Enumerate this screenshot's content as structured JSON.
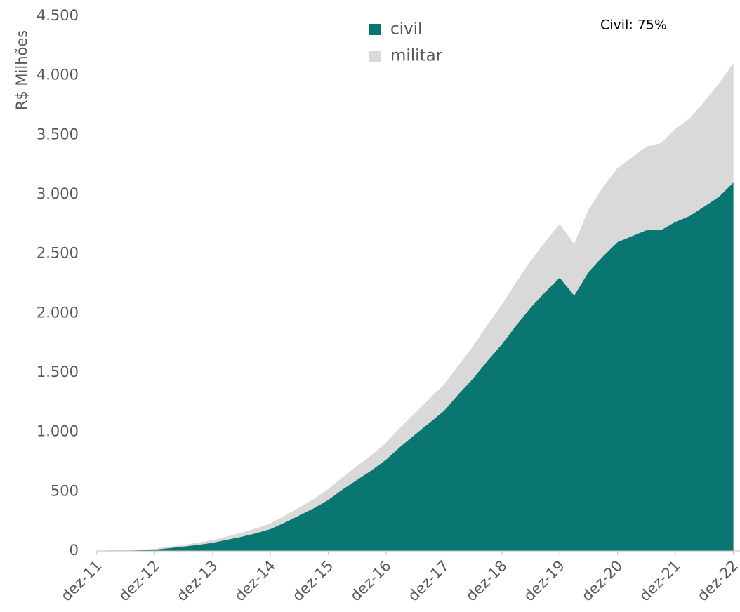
{
  "chart_data": {
    "type": "stacked_area",
    "y_label": "R$ Milhões",
    "annotation": "Civil: 75%",
    "categories": [
      "dez-11",
      null,
      null,
      null,
      "dez-12",
      null,
      null,
      null,
      "dez-13",
      null,
      null,
      null,
      "dez-14",
      null,
      null,
      null,
      "dez-15",
      null,
      null,
      null,
      "dez-16",
      null,
      null,
      null,
      "dez-17",
      null,
      null,
      null,
      "dez-18",
      null,
      null,
      null,
      "dez-19",
      null,
      null,
      null,
      "dez-20",
      null,
      null,
      null,
      "dez-21",
      null,
      null,
      null,
      "dez-22"
    ],
    "series": [
      {
        "name": "civil",
        "color": "#0a7672",
        "values": [
          0,
          2,
          4,
          7,
          12,
          25,
          38,
          52,
          70,
          95,
          120,
          150,
          185,
          240,
          300,
          360,
          430,
          520,
          600,
          680,
          770,
          880,
          980,
          1080,
          1180,
          1320,
          1450,
          1600,
          1740,
          1900,
          2050,
          2180,
          2300,
          2150,
          2350,
          2480,
          2600,
          2650,
          2700,
          2700,
          2770,
          2820,
          2900,
          2980,
          3100
        ]
      },
      {
        "name": "militar",
        "color": "#d9d9d9",
        "values": [
          0,
          1,
          2,
          3,
          5,
          8,
          12,
          16,
          20,
          25,
          32,
          38,
          45,
          55,
          65,
          75,
          90,
          100,
          115,
          125,
          140,
          160,
          180,
          200,
          220,
          240,
          270,
          300,
          330,
          360,
          390,
          420,
          450,
          430,
          520,
          580,
          620,
          660,
          700,
          730,
          780,
          820,
          880,
          950,
          1000
        ]
      }
    ],
    "ylim": [
      0,
      4500
    ],
    "yticks": [
      0,
      500,
      {
        "value": 1000,
        "label": "1.000"
      },
      {
        "value": 1500,
        "label": "1.500"
      },
      {
        "value": 2000,
        "label": "2.000"
      },
      {
        "value": 2500,
        "label": "2.500"
      },
      {
        "value": 3000,
        "label": "3.000"
      },
      {
        "value": 3500,
        "label": "3.500"
      },
      {
        "value": 4000,
        "label": "4.000"
      },
      {
        "value": 4500,
        "label": "4.500"
      }
    ],
    "stacked": true,
    "legend": "top"
  }
}
